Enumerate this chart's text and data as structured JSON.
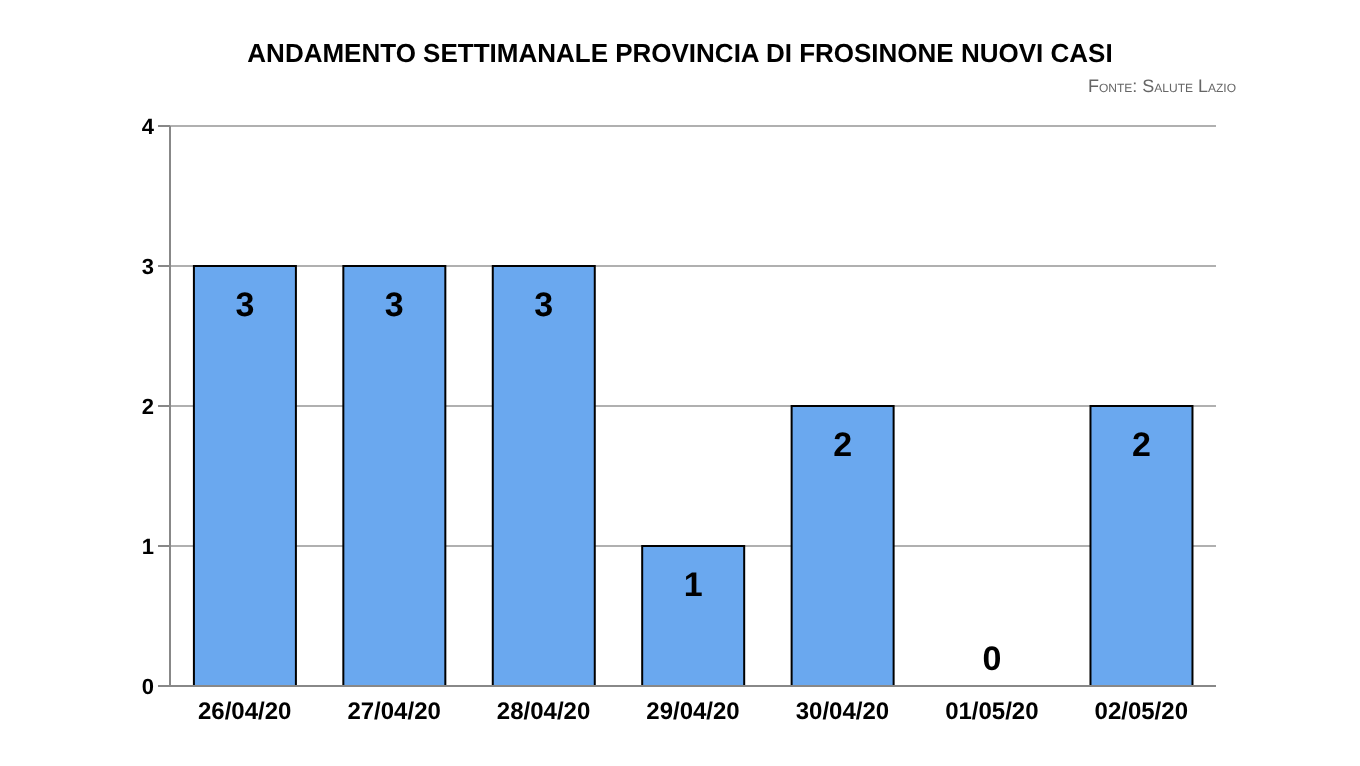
{
  "chart_data": {
    "type": "bar",
    "title": "ANDAMENTO SETTIMANALE PROVINCIA DI FROSINONE NUOVI CASI",
    "annotations": [
      "Fonte: Salute Lazio"
    ],
    "categories": [
      "26/04/20",
      "27/04/20",
      "28/04/20",
      "29/04/20",
      "30/04/20",
      "01/05/20",
      "02/05/20"
    ],
    "values": [
      3,
      3,
      3,
      1,
      2,
      0,
      2
    ],
    "color": "#6aa8ef",
    "ylim": [
      0,
      4
    ],
    "yticks": [
      0,
      1,
      2,
      3,
      4
    ],
    "grid": "y",
    "data_labels": true,
    "legend": false
  }
}
